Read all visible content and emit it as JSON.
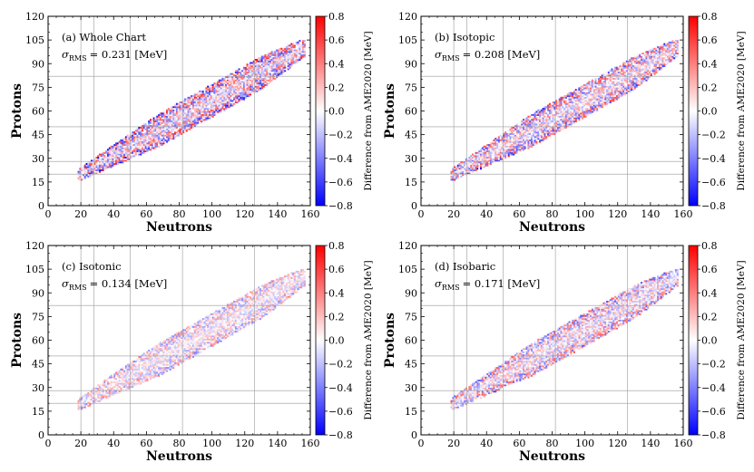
{
  "chart_data": [
    {
      "type": "heatmap",
      "panel_label": "(a) Whole Chart",
      "rms_label": "= 0.231 [MeV]",
      "rms_symbol": "σ",
      "rms_sub": "RMS",
      "rms_value": 0.231,
      "xlabel": "Neutrons",
      "ylabel": "Protons",
      "xlim": [
        0,
        160
      ],
      "ylim": [
        0,
        120
      ],
      "xticks": [
        "0",
        "20",
        "40",
        "60",
        "80",
        "100",
        "120",
        "140",
        "160"
      ],
      "yticks": [
        "0",
        "15",
        "30",
        "45",
        "60",
        "75",
        "90",
        "105",
        "120"
      ],
      "colorbar": {
        "label": "Difference from AME2020 [MeV]",
        "range": [
          -0.8,
          0.8
        ],
        "ticks": [
          "−0.8",
          "−0.6",
          "−0.4",
          "−0.2",
          "0.0",
          "0.2",
          "0.4",
          "0.6",
          "0.8"
        ]
      },
      "magic_lines": {
        "N": [
          20,
          28,
          50,
          82,
          126
        ],
        "Z": [
          20,
          28,
          50,
          82
        ]
      },
      "amplitude": 0.55,
      "seed": 11
    },
    {
      "type": "heatmap",
      "panel_label": "(b) Isotopic",
      "rms_label": "= 0.208 [MeV]",
      "rms_symbol": "σ",
      "rms_sub": "RMS",
      "rms_value": 0.208,
      "xlabel": "Neutrons",
      "ylabel": "Protons",
      "xlim": [
        0,
        160
      ],
      "ylim": [
        0,
        120
      ],
      "xticks": [
        "0",
        "20",
        "40",
        "60",
        "80",
        "100",
        "120",
        "140",
        "160"
      ],
      "yticks": [
        "0",
        "15",
        "30",
        "45",
        "60",
        "75",
        "90",
        "105",
        "120"
      ],
      "colorbar": {
        "label": "Difference from AME2020 [MeV]",
        "range": [
          -0.8,
          0.8
        ],
        "ticks": [
          "−0.8",
          "−0.6",
          "−0.4",
          "−0.2",
          "0.0",
          "0.2",
          "0.4",
          "0.6",
          "0.8"
        ]
      },
      "magic_lines": {
        "N": [
          20,
          28,
          50,
          82,
          126
        ],
        "Z": [
          20,
          28,
          50,
          82
        ]
      },
      "amplitude": 0.48,
      "seed": 23
    },
    {
      "type": "heatmap",
      "panel_label": "(c) Isotonic",
      "rms_label": "= 0.134 [MeV]",
      "rms_symbol": "σ",
      "rms_sub": "RMS",
      "rms_value": 0.134,
      "xlabel": "Neutrons",
      "ylabel": "Protons",
      "xlim": [
        0,
        160
      ],
      "ylim": [
        0,
        120
      ],
      "xticks": [
        "0",
        "20",
        "40",
        "60",
        "80",
        "100",
        "120",
        "140",
        "160"
      ],
      "yticks": [
        "0",
        "15",
        "30",
        "45",
        "60",
        "75",
        "90",
        "105",
        "120"
      ],
      "colorbar": {
        "label": "Difference from AME2020 [MeV]",
        "range": [
          -0.8,
          0.8
        ],
        "ticks": [
          "−0.8",
          "−0.6",
          "−0.4",
          "−0.2",
          "0.0",
          "0.2",
          "0.4",
          "0.6",
          "0.8"
        ]
      },
      "magic_lines": {
        "N": [
          20,
          28,
          50,
          82,
          126
        ],
        "Z": [
          20,
          28,
          50,
          82
        ]
      },
      "amplitude": 0.3,
      "seed": 37
    },
    {
      "type": "heatmap",
      "panel_label": "(d) Isobaric",
      "rms_label": "= 0.171 [MeV]",
      "rms_symbol": "σ",
      "rms_sub": "RMS",
      "rms_value": 0.171,
      "xlabel": "Neutrons",
      "ylabel": "Protons",
      "xlim": [
        0,
        160
      ],
      "ylim": [
        0,
        120
      ],
      "xticks": [
        "0",
        "20",
        "40",
        "60",
        "80",
        "100",
        "120",
        "140",
        "160"
      ],
      "yticks": [
        "0",
        "15",
        "30",
        "45",
        "60",
        "75",
        "90",
        "105",
        "120"
      ],
      "colorbar": {
        "label": "Difference from AME2020 [MeV]",
        "range": [
          -0.8,
          0.8
        ],
        "ticks": [
          "−0.8",
          "−0.6",
          "−0.4",
          "−0.2",
          "0.0",
          "0.2",
          "0.4",
          "0.6",
          "0.8"
        ]
      },
      "magic_lines": {
        "N": [
          20,
          28,
          50,
          82,
          126
        ],
        "Z": [
          20,
          28,
          50,
          82
        ]
      },
      "amplitude": 0.4,
      "seed": 53
    }
  ]
}
